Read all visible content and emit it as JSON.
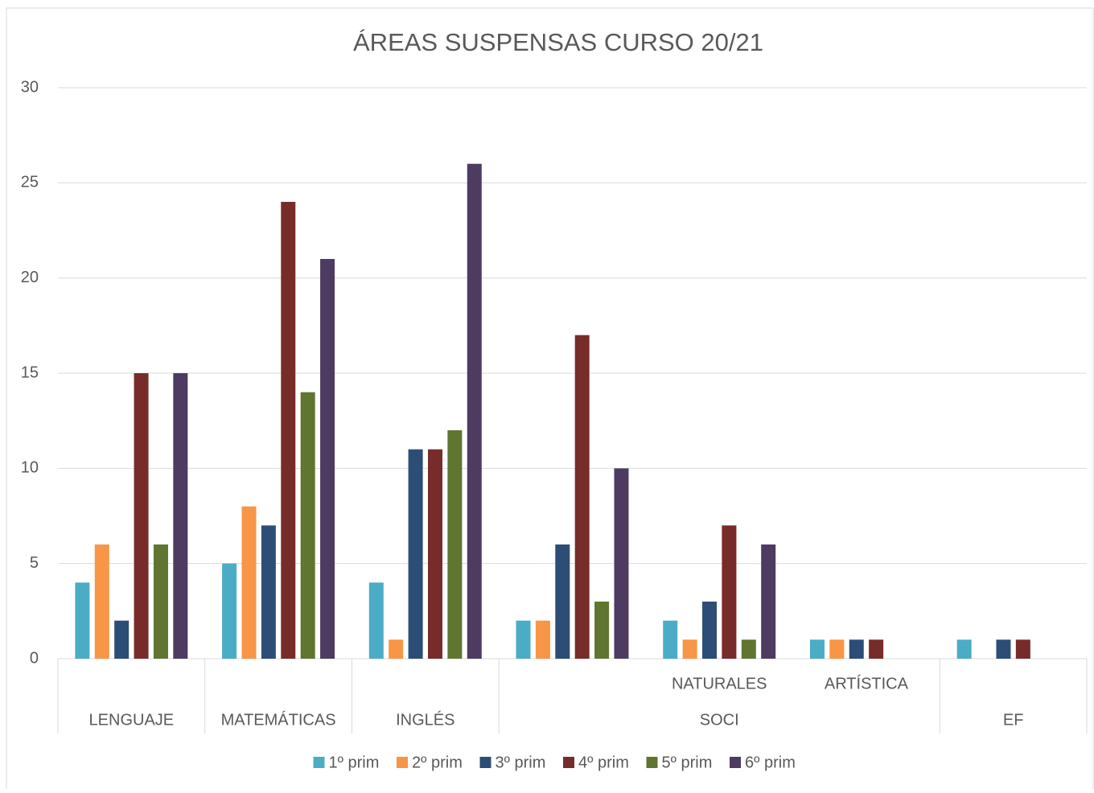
{
  "chart_data": {
    "type": "bar",
    "title": "ÁREAS SUSPENSAS CURSO 20/21",
    "categories": [
      null,
      null,
      null,
      null,
      "NATURALES",
      "ARTÍSTICA",
      null
    ],
    "category_groups": [
      {
        "name": "LENGUAJE",
        "span": 1
      },
      {
        "name": "MATEMÁTICAS",
        "span": 1
      },
      {
        "name": "INGLÉS",
        "span": 1
      },
      {
        "name": "SOCI",
        "span": 3
      },
      {
        "name": "EF",
        "span": 1
      }
    ],
    "series": [
      {
        "name": "1º prim",
        "color": "#4bacc6",
        "values": [
          4,
          5,
          4,
          2,
          2,
          1,
          1
        ]
      },
      {
        "name": "2º prim",
        "color": "#f79646",
        "values": [
          6,
          8,
          1,
          2,
          1,
          1,
          null
        ]
      },
      {
        "name": "3º prim",
        "color": "#2c4d75",
        "values": [
          2,
          7,
          11,
          6,
          3,
          1,
          1
        ]
      },
      {
        "name": "4º prim",
        "color": "#772c2a",
        "values": [
          15,
          24,
          11,
          17,
          7,
          1,
          1
        ]
      },
      {
        "name": "5º prim",
        "color": "#5f7530",
        "values": [
          6,
          14,
          12,
          3,
          1,
          null,
          null
        ]
      },
      {
        "name": "6º prim",
        "color": "#4d3b62",
        "values": [
          15,
          21,
          26,
          10,
          6,
          null,
          null
        ]
      }
    ],
    "ylim": [
      0,
      30
    ],
    "yticks": [
      0,
      5,
      10,
      15,
      20,
      25,
      30
    ],
    "grid": true,
    "legend": "bottom"
  }
}
